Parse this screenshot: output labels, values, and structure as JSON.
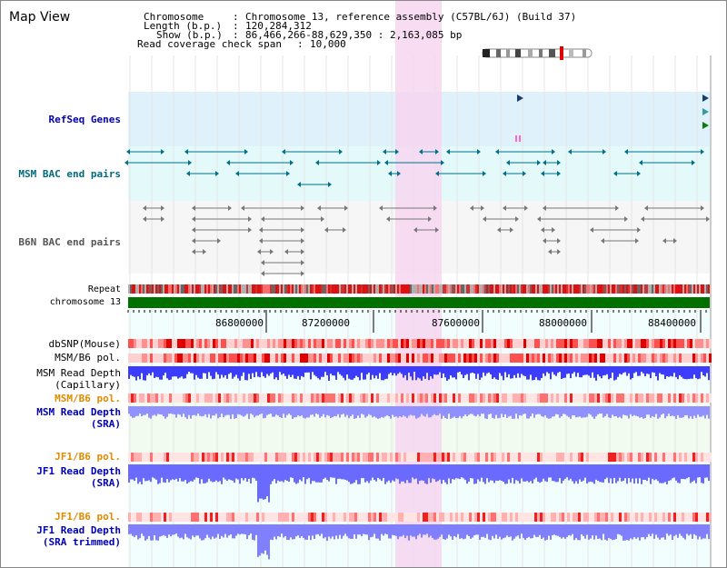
{
  "view_title": "Map View",
  "header": {
    "chromosome_label": "Chromosome",
    "chromosome_value": "Chromosome 13, reference assembly (C57BL/6J) (Build 37)",
    "length_label": "Length (b.p.)",
    "length_value": "120,284,312",
    "show_label": "Show (b.p.)",
    "show_value": "86,466,266-88,629,350 : 2,163,085 bp",
    "coverage_label": "Read coverage check span",
    "coverage_value": "10,000"
  },
  "tracks": {
    "refseq": "RefSeq Genes",
    "msm_bac": "MSM BAC end pairs",
    "b6n_bac": "B6N BAC end pairs",
    "repeat": "Repeat",
    "chromosome": "chromosome 13",
    "dbsnp": "dbSNP(Mouse)",
    "msm_b6_pol": "MSM/B6 pol.",
    "msm_depth_cap_1": "MSM Read Depth",
    "msm_depth_cap_2": "(Capillary)",
    "msm_b6_pol_sra": "MSM/B6 pol.",
    "msm_depth_sra_1": "MSM Read Depth",
    "msm_depth_sra_2": "(SRA)",
    "jf1_b6_pol": "JF1/B6 pol.",
    "jf1_depth_sra_1": "JF1 Read Depth",
    "jf1_depth_sra_2": "(SRA)",
    "jf1_b6_pol_trim": "JF1/B6 pol.",
    "jf1_depth_trim_1": "JF1 Read Depth",
    "jf1_depth_trim_2": "(SRA trimmed)"
  },
  "axis_ticks": [
    "86800000",
    "87200000",
    "87600000",
    "88000000",
    "88400000"
  ],
  "colors": {
    "highlight": "#f7d6f0",
    "refseq_bg": "#dff1fb",
    "msm_bg": "#e4fafa",
    "b6n_bg": "#f6f6f6",
    "chromosome_bar": "#007000",
    "depth_bar": "#4a4aff",
    "link_blue": "#0000b4",
    "label_orange": "#e08a00"
  }
}
